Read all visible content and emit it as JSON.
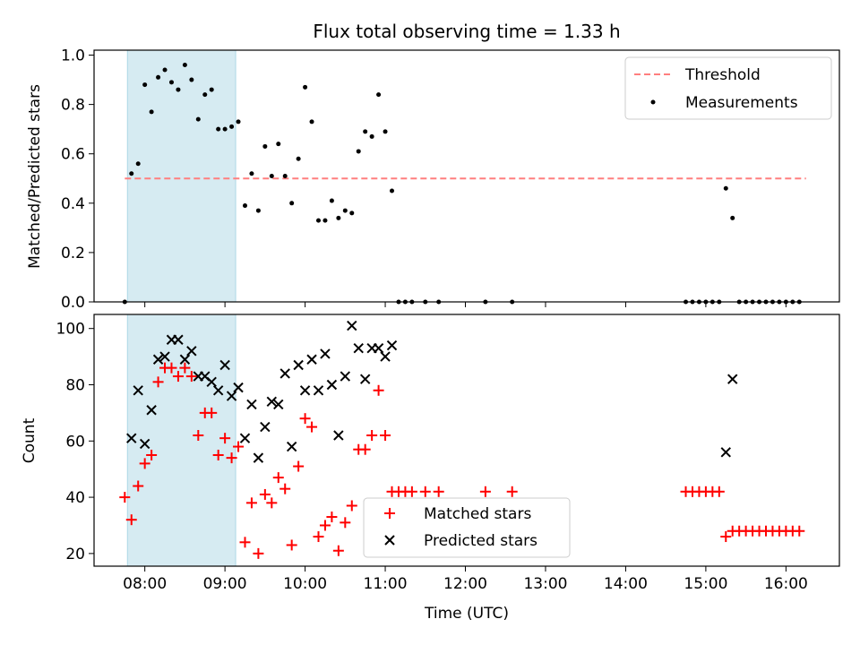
{
  "chart_data": [
    {
      "type": "scatter",
      "title": "Flux total observing time = 1.33 h",
      "xlabel": "",
      "ylabel": "Matched/Predicted stars",
      "ylim": [
        0,
        1.02
      ],
      "yticks": [
        "0.0",
        "0.2",
        "0.4",
        "0.6",
        "0.8",
        "1.0"
      ],
      "highlight_band": {
        "from": "07:47",
        "to": "09:08",
        "color": "#add8e6"
      },
      "threshold": {
        "name": "Threshold",
        "value": 0.5,
        "from": "07:45",
        "to": "16:15",
        "color": "#ff7f7f"
      },
      "series": [
        {
          "name": "Measurements",
          "color": "#000000",
          "marker": "dot",
          "x": [
            "07:45",
            "07:50",
            "07:55",
            "08:00",
            "08:05",
            "08:10",
            "08:15",
            "08:20",
            "08:25",
            "08:30",
            "08:35",
            "08:40",
            "08:45",
            "08:50",
            "08:55",
            "09:00",
            "09:05",
            "09:10",
            "09:15",
            "09:20",
            "09:25",
            "09:30",
            "09:35",
            "09:40",
            "09:45",
            "09:50",
            "09:55",
            "10:00",
            "10:05",
            "10:10",
            "10:15",
            "10:20",
            "10:25",
            "10:30",
            "10:35",
            "10:40",
            "10:45",
            "10:50",
            "10:55",
            "11:00",
            "11:05",
            "11:10",
            "11:15",
            "11:20",
            "11:30",
            "11:40",
            "12:15",
            "12:35",
            "14:45",
            "14:50",
            "14:55",
            "15:00",
            "15:05",
            "15:10",
            "15:15",
            "15:20",
            "15:25",
            "15:30",
            "15:35",
            "15:40",
            "15:45",
            "15:50",
            "15:55",
            "16:00",
            "16:05",
            "16:10"
          ],
          "y": [
            0,
            0.52,
            0.56,
            0.88,
            0.77,
            0.91,
            0.94,
            0.89,
            0.86,
            0.96,
            0.9,
            0.74,
            0.84,
            0.86,
            0.7,
            0.7,
            0.71,
            0.73,
            0.39,
            0.52,
            0.37,
            0.63,
            0.51,
            0.64,
            0.51,
            0.4,
            0.58,
            0.87,
            0.73,
            0.33,
            0.33,
            0.41,
            0.34,
            0.37,
            0.36,
            0.61,
            0.69,
            0.67,
            0.84,
            0.69,
            0.45,
            0,
            0,
            0,
            0,
            0,
            0,
            0,
            0,
            0,
            0,
            0,
            0,
            0,
            0.46,
            0.34,
            0,
            0,
            0,
            0,
            0,
            0,
            0,
            0,
            0,
            0
          ]
        }
      ],
      "legend": {
        "placement": "upper right",
        "entries": [
          "Threshold",
          "Measurements"
        ]
      }
    },
    {
      "type": "scatter",
      "title": "",
      "xlabel": "Time (UTC)",
      "ylabel": "Count",
      "ylim": [
        15.5,
        105
      ],
      "yticks": [
        "20",
        "40",
        "60",
        "80",
        "100"
      ],
      "xticks": [
        "08:00",
        "09:00",
        "10:00",
        "11:00",
        "12:00",
        "13:00",
        "14:00",
        "15:00",
        "16:00"
      ],
      "xlim": [
        "07:22",
        "16:40"
      ],
      "highlight_band": {
        "from": "07:47",
        "to": "09:08",
        "color": "#add8e6"
      },
      "series": [
        {
          "name": "Matched stars",
          "color": "#ff0000",
          "marker": "plus",
          "x": [
            "07:45",
            "07:50",
            "07:55",
            "08:00",
            "08:05",
            "08:10",
            "08:15",
            "08:20",
            "08:25",
            "08:30",
            "08:35",
            "08:40",
            "08:45",
            "08:50",
            "08:55",
            "09:00",
            "09:05",
            "09:10",
            "09:15",
            "09:20",
            "09:25",
            "09:30",
            "09:35",
            "09:40",
            "09:45",
            "09:50",
            "09:55",
            "10:00",
            "10:05",
            "10:10",
            "10:15",
            "10:20",
            "10:25",
            "10:30",
            "10:35",
            "10:40",
            "10:45",
            "10:50",
            "10:55",
            "11:00",
            "11:05",
            "11:10",
            "11:15",
            "11:20",
            "11:30",
            "11:40",
            "12:15",
            "12:35",
            "14:45",
            "14:50",
            "14:55",
            "15:00",
            "15:05",
            "15:10",
            "15:15",
            "15:20",
            "15:25",
            "15:30",
            "15:35",
            "15:40",
            "15:45",
            "15:50",
            "15:55",
            "16:00",
            "16:05",
            "16:10"
          ],
          "y": [
            40,
            32,
            44,
            52,
            55,
            81,
            86,
            86,
            83,
            86,
            83,
            62,
            70,
            70,
            55,
            61,
            54,
            58,
            24,
            38,
            20,
            41,
            38,
            47,
            43,
            23,
            51,
            68,
            65,
            26,
            30,
            33,
            21,
            31,
            37,
            57,
            57,
            62,
            78,
            62,
            42,
            42,
            42,
            42,
            42,
            42,
            42,
            42,
            42,
            42,
            42,
            42,
            42,
            42,
            26,
            28,
            28,
            28,
            28,
            28,
            28,
            28,
            28,
            28,
            28,
            28
          ]
        },
        {
          "name": "Predicted stars",
          "color": "#000000",
          "marker": "x",
          "x": [
            "07:50",
            "07:55",
            "08:00",
            "08:05",
            "08:10",
            "08:15",
            "08:20",
            "08:25",
            "08:30",
            "08:35",
            "08:40",
            "08:45",
            "08:50",
            "08:55",
            "09:00",
            "09:05",
            "09:10",
            "09:15",
            "09:20",
            "09:25",
            "09:30",
            "09:35",
            "09:40",
            "09:45",
            "09:50",
            "09:55",
            "10:00",
            "10:05",
            "10:10",
            "10:15",
            "10:20",
            "10:25",
            "10:30",
            "10:35",
            "10:40",
            "10:45",
            "10:50",
            "10:55",
            "11:00",
            "11:05",
            "15:15",
            "15:20"
          ],
          "y": [
            61,
            78,
            59,
            71,
            89,
            90,
            96,
            96,
            89,
            92,
            83,
            83,
            81,
            78,
            87,
            76,
            79,
            61,
            73,
            54,
            65,
            74,
            73,
            84,
            58,
            87,
            78,
            89,
            78,
            91,
            80,
            62,
            83,
            101,
            93,
            82,
            93,
            93,
            90,
            94,
            56,
            82
          ]
        }
      ],
      "legend": {
        "placement": "lower center",
        "entries": [
          "Matched stars",
          "Predicted stars"
        ]
      }
    }
  ]
}
